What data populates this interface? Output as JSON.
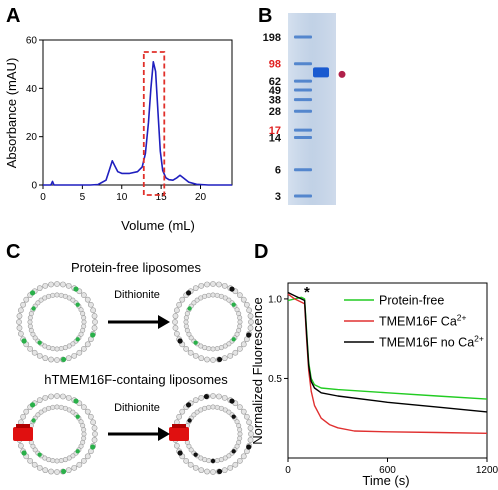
{
  "panels": {
    "A": {
      "label": "A",
      "chart_data": {
        "type": "line",
        "xlabel": "Volume (mL)",
        "ylabel": "Absorbance (mAU)",
        "xlim": [
          0,
          24
        ],
        "ylim": [
          0,
          60
        ],
        "xticks": [
          "0",
          "5",
          "10",
          "15",
          "20"
        ],
        "yticks": [
          "0",
          "20",
          "40",
          "60"
        ],
        "line_color": "#1f1fbf",
        "box_color": "#e0302a",
        "highlight_range": [
          12.8,
          15.4
        ],
        "x": [
          0,
          1,
          1.2,
          1.4,
          2,
          4,
          6,
          7,
          8,
          8.4,
          8.8,
          9.1,
          9.5,
          10,
          11,
          12,
          12.6,
          13.0,
          13.4,
          13.7,
          14.0,
          14.3,
          14.6,
          14.9,
          15.2,
          15.6,
          16,
          16.5,
          17,
          17.4,
          17.8,
          18.5,
          19.5,
          21,
          23,
          24
        ],
        "y": [
          0,
          0,
          1.5,
          0,
          0,
          0,
          0,
          0.2,
          2,
          6,
          10,
          8,
          5.5,
          4.8,
          4.8,
          5.5,
          7.5,
          13,
          26,
          40,
          51,
          47,
          30,
          14,
          6,
          3,
          2.2,
          2,
          3,
          4,
          3,
          1.2,
          0.3,
          0,
          0,
          0
        ]
      }
    },
    "B": {
      "label": "B",
      "markers": [
        "198",
        "98",
        "62",
        "49",
        "38",
        "28",
        "17",
        "14",
        "6",
        "3"
      ],
      "red_markers": [
        "98",
        "17"
      ],
      "marker_kda": [
        198,
        98,
        62,
        49,
        38,
        28,
        17,
        14,
        6,
        3
      ],
      "band_kda": 78,
      "dot_color": "#b0204a"
    },
    "C": {
      "label": "C",
      "title_top": "Protein-free liposomes",
      "title_bottom": "hTMEM16F-containg liposomes",
      "arrow_label": "Dithionite",
      "arrow_label_2": "Dithionite"
    },
    "D": {
      "label": "D",
      "chart_data": {
        "type": "line",
        "xlabel": "Time (s)",
        "ylabel": "Normalized Fluorescence",
        "xlim": [
          0,
          1200
        ],
        "ylim": [
          0,
          1.1
        ],
        "xticks": [
          "0",
          "600",
          "1200"
        ],
        "yticks": [
          "0.5",
          "1.0"
        ],
        "annotation": "*",
        "legend_placement": "top-right",
        "series": [
          {
            "name": "Protein-free",
            "color": "#22cc22",
            "x": [
              0,
              40,
              80,
              100,
              112,
              125,
              140,
              160,
              200,
              300,
              600,
              900,
              1200
            ],
            "y": [
              0.99,
              1.0,
              1.01,
              1.0,
              0.8,
              0.6,
              0.5,
              0.46,
              0.44,
              0.43,
              0.41,
              0.39,
              0.37
            ]
          },
          {
            "name": "TMEM16F Ca",
            "color": "#e03030",
            "x": [
              0,
              40,
              80,
              100,
              112,
              125,
              140,
              160,
              200,
              250,
              300,
              400,
              600,
              900,
              1200
            ],
            "y": [
              1.03,
              1.0,
              0.98,
              0.97,
              0.75,
              0.55,
              0.42,
              0.33,
              0.25,
              0.21,
              0.19,
              0.17,
              0.165,
              0.16,
              0.155
            ]
          },
          {
            "name": "TMEM16F no Ca",
            "color": "#000000",
            "x": [
              0,
              40,
              80,
              100,
              112,
              125,
              140,
              160,
              200,
              300,
              600,
              900,
              1200
            ],
            "y": [
              1.04,
              1.02,
              1.0,
              0.99,
              0.78,
              0.58,
              0.48,
              0.44,
              0.41,
              0.39,
              0.35,
              0.32,
              0.29
            ]
          }
        ],
        "legend": [
          {
            "text": "Protein-free",
            "sup": ""
          },
          {
            "text": "TMEM16F Ca",
            "sup": "2+"
          },
          {
            "text": "TMEM16F no Ca",
            "sup": "2+"
          }
        ]
      }
    }
  }
}
